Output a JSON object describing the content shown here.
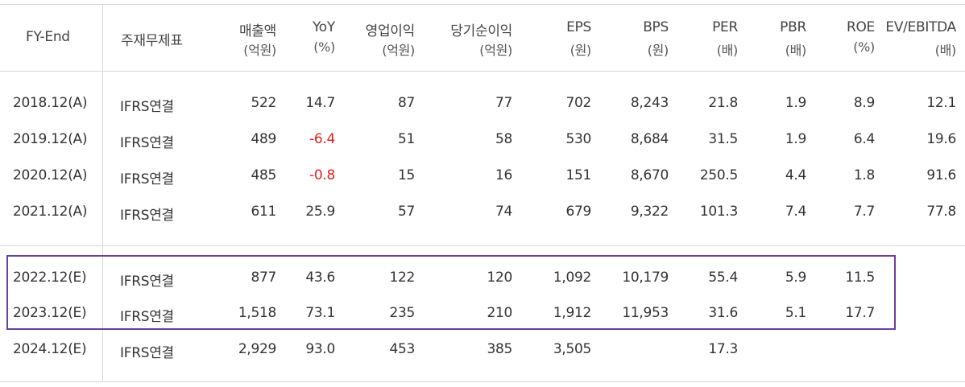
{
  "table": {
    "headers": [
      {
        "line1": "FY-End",
        "line2": ""
      },
      {
        "line1": "주재무제표",
        "line2": ""
      },
      {
        "line1": "매출액",
        "line2": "(억원)"
      },
      {
        "line1": "YoY",
        "line2": "(%)"
      },
      {
        "line1": "영업이익",
        "line2": "(억원)"
      },
      {
        "line1": "당기순이익",
        "line2": "(억원)"
      },
      {
        "line1": "EPS",
        "line2": "(원)"
      },
      {
        "line1": "BPS",
        "line2": "(원)"
      },
      {
        "line1": "PER",
        "line2": "(배)"
      },
      {
        "line1": "PBR",
        "line2": "(배)"
      },
      {
        "line1": "ROE",
        "line2": "(%)"
      },
      {
        "line1": "EV/EBITDA",
        "line2": "(배)"
      }
    ],
    "rows": [
      [
        "2018.12(A)",
        "IFRS연결",
        "522",
        "14.7",
        "87",
        "77",
        "702",
        "8,243",
        "21.8",
        "1.9",
        "8.9",
        "12.1"
      ],
      [
        "2019.12(A)",
        "IFRS연결",
        "489",
        "-6.4",
        "51",
        "58",
        "530",
        "8,684",
        "31.5",
        "1.9",
        "6.4",
        "19.6"
      ],
      [
        "2020.12(A)",
        "IFRS연결",
        "485",
        "-0.8",
        "15",
        "16",
        "151",
        "8,670",
        "250.5",
        "4.4",
        "1.8",
        "91.6"
      ],
      [
        "2021.12(A)",
        "IFRS연결",
        "611",
        "25.9",
        "57",
        "74",
        "679",
        "9,322",
        "101.3",
        "7.4",
        "7.7",
        "77.8"
      ],
      [
        "2022.12(E)",
        "IFRS연결",
        "877",
        "43.6",
        "122",
        "120",
        "1,092",
        "10,179",
        "55.4",
        "5.9",
        "11.5",
        ""
      ],
      [
        "2023.12(E)",
        "IFRS연결",
        "1,518",
        "73.1",
        "235",
        "210",
        "1,912",
        "11,953",
        "31.6",
        "5.1",
        "17.7",
        ""
      ],
      [
        "2024.12(E)",
        "IFRS연결",
        "2,929",
        "93.0",
        "453",
        "385",
        "3,505",
        "",
        "17.3",
        "",
        "",
        ""
      ]
    ],
    "negative_color": "#e31e1e",
    "highlight_color": "#6b3fa0"
  }
}
